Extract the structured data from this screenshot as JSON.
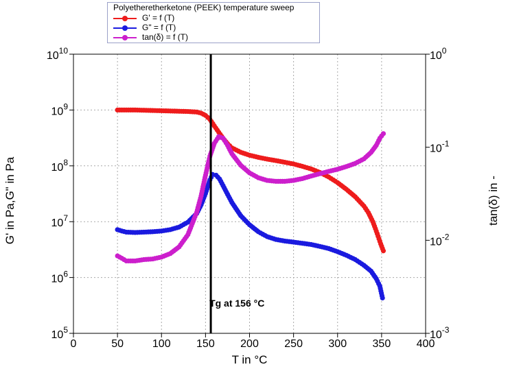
{
  "chart_data": {
    "type": "scatter",
    "legend_title": "Polyetheretherketone (PEEK) temperature sweep",
    "xlabel": "T in °C",
    "ylabel_left": "G' in Pa,G\" in Pa",
    "ylabel_right": "tan(δ) in -",
    "xlim": [
      0,
      400
    ],
    "x_ticks": [
      "0",
      "50",
      "100",
      "150",
      "200",
      "250",
      "300",
      "350",
      "400"
    ],
    "y_left_scale": "log",
    "y_left_lim": [
      100000,
      10000000000
    ],
    "y_left_ticks": [
      {
        "base": "10",
        "exp": "5"
      },
      {
        "base": "10",
        "exp": "6"
      },
      {
        "base": "10",
        "exp": "7"
      },
      {
        "base": "10",
        "exp": "8"
      },
      {
        "base": "10",
        "exp": "9"
      },
      {
        "base": "10",
        "exp": "10"
      }
    ],
    "y_right_scale": "log",
    "y_right_lim": [
      0.001,
      1
    ],
    "y_right_ticks": [
      {
        "base": "10",
        "exp": "-3"
      },
      {
        "base": "10",
        "exp": "-2"
      },
      {
        "base": "10",
        "exp": "-1"
      },
      {
        "base": "10",
        "exp": "0"
      }
    ],
    "grid": true,
    "legend_position": "top",
    "annotation": {
      "text": "Tg at 156 °C",
      "x": 156
    },
    "series": [
      {
        "name": "G' = f (T)",
        "color": "#ee1c1c",
        "axis": "left",
        "points": [
          [
            50,
            1000000000.0
          ],
          [
            60,
            1000000000.0
          ],
          [
            70,
            1000000000.0
          ],
          [
            80,
            990000000.0
          ],
          [
            90,
            980000000.0
          ],
          [
            100,
            970000000.0
          ],
          [
            110,
            960000000.0
          ],
          [
            120,
            950000000.0
          ],
          [
            130,
            940000000.0
          ],
          [
            140,
            920000000.0
          ],
          [
            145,
            880000000.0
          ],
          [
            150,
            800000000.0
          ],
          [
            155,
            680000000.0
          ],
          [
            160,
            520000000.0
          ],
          [
            165,
            400000000.0
          ],
          [
            170,
            310000000.0
          ],
          [
            175,
            250000000.0
          ],
          [
            180,
            210000000.0
          ],
          [
            190,
            175000000.0
          ],
          [
            200,
            155000000.0
          ],
          [
            210,
            142000000.0
          ],
          [
            220,
            132000000.0
          ],
          [
            230,
            124000000.0
          ],
          [
            240,
            116000000.0
          ],
          [
            250,
            108000000.0
          ],
          [
            260,
            98000000.0
          ],
          [
            270,
            88000000.0
          ],
          [
            280,
            76000000.0
          ],
          [
            290,
            63000000.0
          ],
          [
            300,
            50000000.0
          ],
          [
            310,
            38000000.0
          ],
          [
            320,
            28000000.0
          ],
          [
            330,
            19000000.0
          ],
          [
            335,
            14500000.0
          ],
          [
            340,
            10000000.0
          ],
          [
            343,
            7500000.0
          ],
          [
            346,
            5500000.0
          ],
          [
            349,
            4000000.0
          ],
          [
            352,
            3000000.0
          ]
        ]
      },
      {
        "name": "G\" = f (T)",
        "color": "#1a1adf",
        "axis": "left",
        "points": [
          [
            50,
            7200000.0
          ],
          [
            55,
            6800000.0
          ],
          [
            60,
            6500000.0
          ],
          [
            70,
            6400000.0
          ],
          [
            80,
            6500000.0
          ],
          [
            90,
            6600000.0
          ],
          [
            100,
            6800000.0
          ],
          [
            110,
            7200000.0
          ],
          [
            120,
            8000000.0
          ],
          [
            130,
            9800000.0
          ],
          [
            140,
            14000000.0
          ],
          [
            145,
            20000000.0
          ],
          [
            150,
            32000000.0
          ],
          [
            155,
            56000000.0
          ],
          [
            158,
            70000000.0
          ],
          [
            162,
            68000000.0
          ],
          [
            166,
            58000000.0
          ],
          [
            170,
            44000000.0
          ],
          [
            175,
            31000000.0
          ],
          [
            180,
            22000000.0
          ],
          [
            190,
            12800000.0
          ],
          [
            200,
            8800000.0
          ],
          [
            210,
            6600000.0
          ],
          [
            220,
            5400000.0
          ],
          [
            230,
            4800000.0
          ],
          [
            240,
            4500000.0
          ],
          [
            250,
            4300000.0
          ],
          [
            260,
            4100000.0
          ],
          [
            270,
            3900000.0
          ],
          [
            280,
            3600000.0
          ],
          [
            290,
            3300000.0
          ],
          [
            300,
            2900000.0
          ],
          [
            310,
            2500000.0
          ],
          [
            320,
            2100000.0
          ],
          [
            330,
            1650000.0
          ],
          [
            338,
            1300000.0
          ],
          [
            344,
            950000.0
          ],
          [
            348,
            700000.0
          ],
          [
            351,
            430000.0
          ]
        ]
      },
      {
        "name": "tan(δ) = f (T)",
        "color": "#cc1fcc",
        "axis": "right",
        "points": [
          [
            50,
            0.0068
          ],
          [
            55,
            0.0064
          ],
          [
            60,
            0.006
          ],
          [
            70,
            0.006
          ],
          [
            80,
            0.0062
          ],
          [
            90,
            0.0063
          ],
          [
            100,
            0.0066
          ],
          [
            110,
            0.0072
          ],
          [
            120,
            0.0085
          ],
          [
            130,
            0.0115
          ],
          [
            140,
            0.02
          ],
          [
            145,
            0.03
          ],
          [
            150,
            0.05
          ],
          [
            155,
            0.08
          ],
          [
            160,
            0.11
          ],
          [
            165,
            0.13
          ],
          [
            170,
            0.125
          ],
          [
            175,
            0.105
          ],
          [
            180,
            0.085
          ],
          [
            190,
            0.064
          ],
          [
            200,
            0.053
          ],
          [
            210,
            0.047
          ],
          [
            220,
            0.044
          ],
          [
            230,
            0.043
          ],
          [
            240,
            0.043
          ],
          [
            250,
            0.044
          ],
          [
            260,
            0.046
          ],
          [
            270,
            0.049
          ],
          [
            280,
            0.052
          ],
          [
            290,
            0.055
          ],
          [
            300,
            0.058
          ],
          [
            310,
            0.062
          ],
          [
            320,
            0.067
          ],
          [
            330,
            0.075
          ],
          [
            338,
            0.088
          ],
          [
            344,
            0.105
          ],
          [
            348,
            0.125
          ],
          [
            352,
            0.14
          ]
        ]
      }
    ]
  }
}
